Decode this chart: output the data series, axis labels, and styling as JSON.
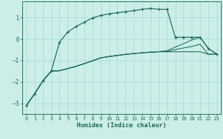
{
  "xlabel": "Humidex (Indice chaleur)",
  "background_color": "#cceee8",
  "grid_color": "#aadddd",
  "line_color": "#1a6b5a",
  "x_values": [
    0,
    1,
    2,
    3,
    4,
    5,
    6,
    7,
    8,
    9,
    10,
    11,
    12,
    13,
    14,
    15,
    16,
    17,
    18,
    19,
    20,
    21,
    22,
    23
  ],
  "line1_y": [
    -3.1,
    -2.55,
    -1.95,
    -1.5,
    -0.15,
    0.32,
    0.58,
    0.78,
    0.98,
    1.1,
    1.17,
    1.22,
    1.27,
    1.32,
    1.38,
    1.42,
    1.38,
    1.38,
    0.08,
    0.08,
    0.08,
    0.08,
    -0.45,
    -0.7
  ],
  "line2_y": [
    -3.1,
    -2.55,
    -1.95,
    -1.5,
    -1.48,
    -1.38,
    -1.28,
    -1.15,
    -1.02,
    -0.88,
    -0.82,
    -0.77,
    -0.72,
    -0.68,
    -0.65,
    -0.62,
    -0.6,
    -0.6,
    -0.6,
    -0.6,
    -0.6,
    -0.6,
    -0.72,
    -0.7
  ],
  "line3_y": [
    -3.1,
    -2.55,
    -1.95,
    -1.5,
    -1.48,
    -1.38,
    -1.28,
    -1.15,
    -1.02,
    -0.88,
    -0.82,
    -0.77,
    -0.72,
    -0.68,
    -0.65,
    -0.62,
    -0.6,
    -0.58,
    -0.5,
    -0.42,
    -0.35,
    -0.25,
    -0.72,
    -0.7
  ],
  "line4_y": [
    -3.1,
    -2.55,
    -1.95,
    -1.5,
    -1.48,
    -1.38,
    -1.28,
    -1.15,
    -1.02,
    -0.88,
    -0.82,
    -0.77,
    -0.72,
    -0.68,
    -0.65,
    -0.62,
    -0.6,
    -0.55,
    -0.38,
    -0.22,
    -0.05,
    0.08,
    -0.45,
    -0.7
  ],
  "ylim": [
    -3.5,
    1.75
  ],
  "xlim": [
    -0.5,
    23.5
  ],
  "yticks": [
    -3,
    -2,
    -1,
    0,
    1
  ],
  "xticks": [
    0,
    1,
    2,
    3,
    4,
    5,
    6,
    7,
    8,
    9,
    10,
    11,
    12,
    13,
    14,
    15,
    16,
    17,
    18,
    19,
    20,
    21,
    22,
    23
  ],
  "figsize": [
    3.2,
    2.0
  ],
  "dpi": 100
}
